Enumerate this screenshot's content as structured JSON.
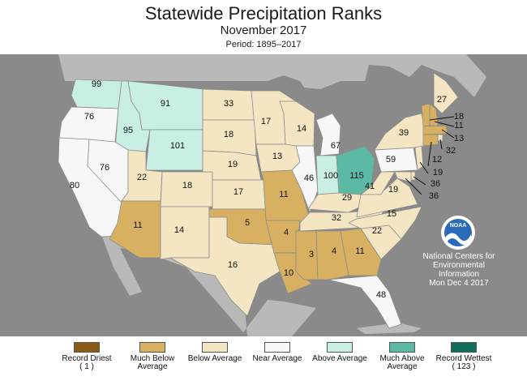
{
  "header": {
    "title": "Statewide Precipitation Ranks",
    "subtitle": "November 2017",
    "period": "Period: 1895–2017"
  },
  "colors": {
    "record_driest": "#8b5a16",
    "much_below": "#d7b062",
    "below": "#f5e6c3",
    "near": "#f7f7f7",
    "above": "#c9efe4",
    "much_above": "#5bb9a6",
    "record_wettest": "#0f6b5b",
    "ocean": "#8a8a8a",
    "land_outside": "#b9b9b9"
  },
  "states": [
    {
      "abbr": "WA",
      "rank": "99",
      "category": "above"
    },
    {
      "abbr": "OR",
      "rank": "76",
      "category": "near"
    },
    {
      "abbr": "CA",
      "rank": "80",
      "category": "near"
    },
    {
      "abbr": "ID",
      "rank": "95",
      "category": "above"
    },
    {
      "abbr": "NV",
      "rank": "76",
      "category": "near"
    },
    {
      "abbr": "MT",
      "rank": "91",
      "category": "above"
    },
    {
      "abbr": "WY",
      "rank": "101",
      "category": "above"
    },
    {
      "abbr": "UT",
      "rank": "22",
      "category": "below"
    },
    {
      "abbr": "AZ",
      "rank": "11",
      "category": "much_below"
    },
    {
      "abbr": "CO",
      "rank": "18",
      "category": "below"
    },
    {
      "abbr": "NM",
      "rank": "14",
      "category": "below"
    },
    {
      "abbr": "ND",
      "rank": "33",
      "category": "below"
    },
    {
      "abbr": "SD",
      "rank": "18",
      "category": "below"
    },
    {
      "abbr": "NE",
      "rank": "19",
      "category": "below"
    },
    {
      "abbr": "KS",
      "rank": "17",
      "category": "below"
    },
    {
      "abbr": "OK",
      "rank": "5",
      "category": "much_below"
    },
    {
      "abbr": "TX",
      "rank": "16",
      "category": "below"
    },
    {
      "abbr": "MN",
      "rank": "17",
      "category": "below"
    },
    {
      "abbr": "IA",
      "rank": "13",
      "category": "below"
    },
    {
      "abbr": "MO",
      "rank": "11",
      "category": "much_below"
    },
    {
      "abbr": "AR",
      "rank": "4",
      "category": "much_below"
    },
    {
      "abbr": "LA",
      "rank": "10",
      "category": "much_below"
    },
    {
      "abbr": "WI",
      "rank": "14",
      "category": "below"
    },
    {
      "abbr": "IL",
      "rank": "46",
      "category": "near"
    },
    {
      "abbr": "MI",
      "rank": "67",
      "category": "near"
    },
    {
      "abbr": "IN",
      "rank": "100",
      "category": "above"
    },
    {
      "abbr": "OH",
      "rank": "115",
      "category": "much_above"
    },
    {
      "abbr": "KY",
      "rank": "29",
      "category": "below"
    },
    {
      "abbr": "TN",
      "rank": "32",
      "category": "below"
    },
    {
      "abbr": "MS",
      "rank": "3",
      "category": "much_below"
    },
    {
      "abbr": "AL",
      "rank": "4",
      "category": "much_below"
    },
    {
      "abbr": "GA",
      "rank": "11",
      "category": "much_below"
    },
    {
      "abbr": "FL",
      "rank": "48",
      "category": "near"
    },
    {
      "abbr": "SC",
      "rank": "22",
      "category": "below"
    },
    {
      "abbr": "NC",
      "rank": "15",
      "category": "below"
    },
    {
      "abbr": "VA",
      "rank": "19",
      "category": "below"
    },
    {
      "abbr": "WV",
      "rank": "41",
      "category": "below"
    },
    {
      "abbr": "PA",
      "rank": "59",
      "category": "near"
    },
    {
      "abbr": "NY",
      "rank": "39",
      "category": "below"
    },
    {
      "abbr": "ME",
      "rank": "27",
      "category": "below"
    },
    {
      "abbr": "VT",
      "rank": "18",
      "category": "much_below"
    },
    {
      "abbr": "NH",
      "rank": "11",
      "category": "much_below"
    },
    {
      "abbr": "MA",
      "rank": "13",
      "category": "much_below"
    },
    {
      "abbr": "RI",
      "rank": "32",
      "category": "below"
    },
    {
      "abbr": "CT",
      "rank": "12",
      "category": "much_below"
    },
    {
      "abbr": "NJ",
      "rank": "19",
      "category": "below"
    },
    {
      "abbr": "DE",
      "rank": "36",
      "category": "below"
    },
    {
      "abbr": "MD",
      "rank": "36",
      "category": "below"
    }
  ],
  "legend": [
    {
      "label": "Record Driest",
      "sub": "( 1 )",
      "color": "#8b5a16"
    },
    {
      "label": "Much Below Average",
      "sub": "",
      "color": "#d7b062"
    },
    {
      "label": "Below Average",
      "sub": "",
      "color": "#f5e6c3"
    },
    {
      "label": "Near Average",
      "sub": "",
      "color": "#f7f7f7"
    },
    {
      "label": "Above Average",
      "sub": "",
      "color": "#c9efe4"
    },
    {
      "label": "Much Above Average",
      "sub": "",
      "color": "#5bb9a6"
    },
    {
      "label": "Record Wettest",
      "sub": "( 123 )",
      "color": "#0f6b5b"
    }
  ],
  "logo": {
    "text": "NOAA"
  },
  "credit": {
    "line1": "National Centers for",
    "line2": "Environmental",
    "line3": "Information",
    "line4": "Mon Dec  4 2017"
  }
}
